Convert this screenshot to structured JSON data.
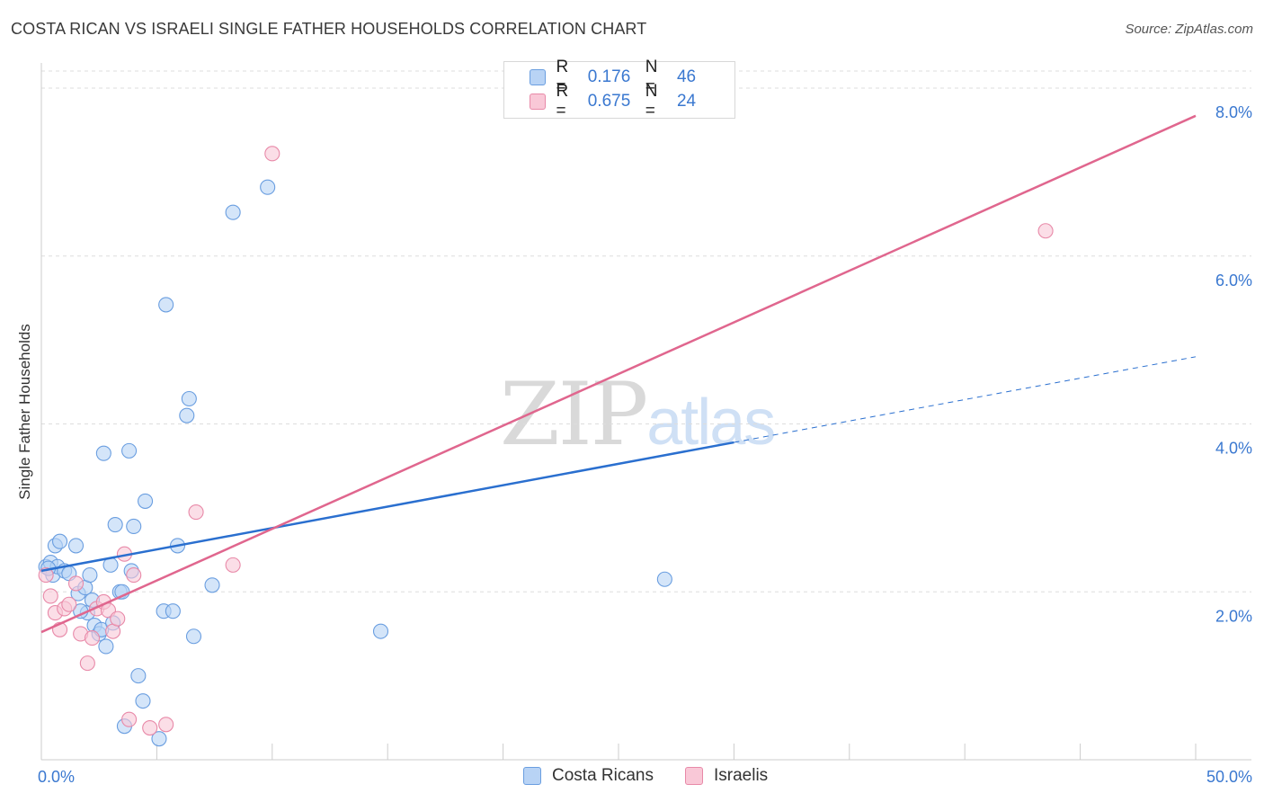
{
  "header": {
    "title": "COSTA RICAN VS ISRAELI SINGLE FATHER HOUSEHOLDS CORRELATION CHART",
    "source": "Source: ZipAtlas.com"
  },
  "watermark": {
    "zip": "ZIP",
    "atlas": "atlas"
  },
  "legend_top": {
    "rows": [
      {
        "r_key": "R =",
        "r_value": "0.176",
        "n_key": "N =",
        "n_value": "46"
      },
      {
        "r_key": "R =",
        "r_value": "0.675",
        "n_key": "N =",
        "n_value": "24"
      }
    ]
  },
  "legend_bottom": {
    "items": [
      "Costa Ricans",
      "Israelis"
    ]
  },
  "colors": {
    "blue_fill": "#b8d3f5",
    "blue_stroke": "#6a9ee0",
    "blue_line": "#2a6fcf",
    "pink_fill": "#f9c8d7",
    "pink_stroke": "#e889a8",
    "pink_line": "#e0668e",
    "axis_text": "#3a78d0",
    "grid": "#dddddd"
  },
  "chart_data": {
    "type": "scatter",
    "title": "COSTA RICAN VS ISRAELI SINGLE FATHER HOUSEHOLDS CORRELATION CHART",
    "xlabel": "",
    "ylabel": "Single Father Households",
    "xlim": [
      0,
      50
    ],
    "ylim": [
      0,
      8.3
    ],
    "x_tick_labels": [
      "0.0%",
      "50.0%"
    ],
    "y_ticks": [
      2,
      4,
      6,
      8
    ],
    "y_tick_labels": [
      "2.0%",
      "4.0%",
      "6.0%",
      "8.0%"
    ],
    "series": [
      {
        "name": "Costa Ricans",
        "r": 0.176,
        "n": 46,
        "trend": {
          "x0": 0,
          "y0": 2.25,
          "x1": 30,
          "y1": 3.78,
          "dash_to_x": 50,
          "dash_to_y": 4.8
        },
        "points": [
          [
            0.2,
            2.3
          ],
          [
            0.4,
            2.35
          ],
          [
            0.5,
            2.2
          ],
          [
            0.6,
            2.55
          ],
          [
            0.7,
            2.3
          ],
          [
            0.8,
            2.6
          ],
          [
            1.0,
            2.25
          ],
          [
            1.2,
            2.22
          ],
          [
            1.5,
            2.55
          ],
          [
            1.6,
            1.98
          ],
          [
            1.9,
            2.05
          ],
          [
            2.0,
            1.75
          ],
          [
            1.7,
            1.77
          ],
          [
            2.1,
            2.2
          ],
          [
            2.2,
            1.9
          ],
          [
            2.3,
            1.6
          ],
          [
            2.5,
            1.5
          ],
          [
            2.6,
            1.55
          ],
          [
            2.7,
            3.65
          ],
          [
            2.8,
            1.35
          ],
          [
            3.0,
            2.32
          ],
          [
            3.1,
            1.63
          ],
          [
            3.2,
            2.8
          ],
          [
            3.4,
            2.0
          ],
          [
            3.5,
            2.0
          ],
          [
            3.6,
            0.4
          ],
          [
            3.8,
            3.68
          ],
          [
            3.9,
            2.25
          ],
          [
            4.0,
            2.78
          ],
          [
            4.2,
            1.0
          ],
          [
            4.4,
            0.7
          ],
          [
            4.5,
            3.08
          ],
          [
            5.1,
            0.25
          ],
          [
            5.3,
            1.77
          ],
          [
            5.4,
            5.42
          ],
          [
            5.7,
            1.77
          ],
          [
            5.9,
            2.55
          ],
          [
            6.3,
            4.1
          ],
          [
            6.4,
            4.3
          ],
          [
            6.6,
            1.47
          ],
          [
            7.4,
            2.08
          ],
          [
            8.3,
            6.52
          ],
          [
            9.8,
            6.82
          ],
          [
            14.7,
            1.53
          ],
          [
            27.0,
            2.15
          ],
          [
            0.3,
            2.28
          ]
        ]
      },
      {
        "name": "Israelis",
        "r": 0.675,
        "n": 24,
        "trend": {
          "x0": 0,
          "y0": 1.52,
          "x1": 50,
          "y1": 7.67
        },
        "points": [
          [
            0.2,
            2.2
          ],
          [
            0.4,
            1.95
          ],
          [
            0.6,
            1.75
          ],
          [
            0.8,
            1.55
          ],
          [
            1.0,
            1.8
          ],
          [
            1.2,
            1.85
          ],
          [
            1.5,
            2.1
          ],
          [
            1.7,
            1.5
          ],
          [
            2.0,
            1.15
          ],
          [
            2.2,
            1.45
          ],
          [
            2.4,
            1.8
          ],
          [
            2.7,
            1.88
          ],
          [
            2.9,
            1.78
          ],
          [
            3.1,
            1.53
          ],
          [
            3.3,
            1.68
          ],
          [
            3.6,
            2.45
          ],
          [
            3.8,
            0.48
          ],
          [
            4.0,
            2.2
          ],
          [
            4.7,
            0.38
          ],
          [
            5.4,
            0.42
          ],
          [
            6.7,
            2.95
          ],
          [
            8.3,
            2.32
          ],
          [
            10.0,
            7.22
          ],
          [
            43.5,
            6.3
          ]
        ]
      }
    ]
  }
}
